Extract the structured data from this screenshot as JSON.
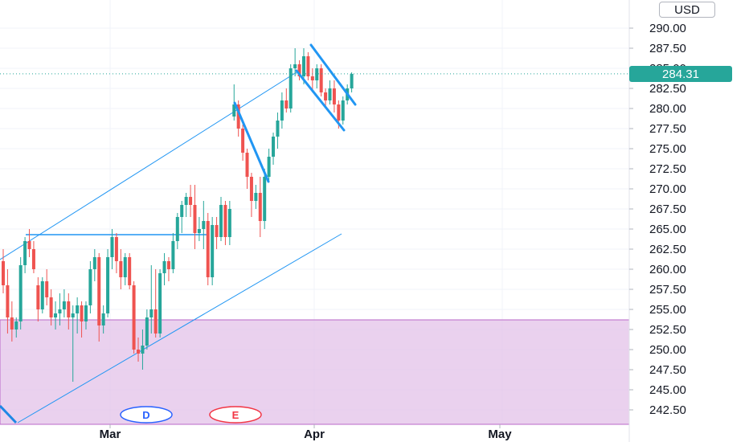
{
  "chart_data": {
    "type": "candlestick",
    "currency": "USD",
    "last_price": "284.31",
    "y_axis": {
      "min": 241,
      "max": 292.5,
      "ticks": [
        "242.50",
        "245.00",
        "247.50",
        "250.00",
        "252.50",
        "255.00",
        "257.50",
        "260.00",
        "262.50",
        "265.00",
        "267.50",
        "270.00",
        "272.50",
        "275.00",
        "277.50",
        "280.00",
        "282.50",
        "285.00",
        "287.50",
        "290.00"
      ]
    },
    "x_axis": {
      "labels": [
        "Mar",
        "Apr",
        "May"
      ]
    },
    "event_badges": [
      {
        "label": "D",
        "color": "#2962ff"
      },
      {
        "label": "E",
        "color": "#f23645"
      }
    ],
    "shaded_zone": {
      "from": 241,
      "to": 253.7,
      "color": "#e1bee7"
    },
    "colors": {
      "up": "#26a69a",
      "down": "#ef5350",
      "drawing": "#2196f3",
      "channel": "#2196f3"
    },
    "candles": [
      [
        261.0,
        262.5,
        257.0,
        258.0
      ],
      [
        258.0,
        260.0,
        252.0,
        254.0
      ],
      [
        254.0,
        256.0,
        251.0,
        252.5
      ],
      [
        252.5,
        254.0,
        251.5,
        253.5
      ],
      [
        253.5,
        261.5,
        252.5,
        260.5
      ],
      [
        260.5,
        264.0,
        259.5,
        263.5
      ],
      [
        263.5,
        265.0,
        261.5,
        262.5
      ],
      [
        262.5,
        263.5,
        259.5,
        260.0
      ],
      [
        258.0,
        259.0,
        253.5,
        255.0
      ],
      [
        255.0,
        259.0,
        254.5,
        258.5
      ],
      [
        258.5,
        260.0,
        255.5,
        256.5
      ],
      [
        256.5,
        257.5,
        253.0,
        254.0
      ],
      [
        254.0,
        256.0,
        252.5,
        254.5
      ],
      [
        254.5,
        257.0,
        253.0,
        255.0
      ],
      [
        255.0,
        257.5,
        254.0,
        256.0
      ],
      [
        256.0,
        257.0,
        252.5,
        254.0
      ],
      [
        254.0,
        255.5,
        246.0,
        254.5
      ],
      [
        254.5,
        256.5,
        252.0,
        255.5
      ],
      [
        255.5,
        256.0,
        251.5,
        253.5
      ],
      [
        253.5,
        256.0,
        252.5,
        255.5
      ],
      [
        255.5,
        261.0,
        254.5,
        260.0
      ],
      [
        260.0,
        262.5,
        258.5,
        261.5
      ],
      [
        261.5,
        262.0,
        251.0,
        253.0
      ],
      [
        253.0,
        255.5,
        252.0,
        254.5
      ],
      [
        254.5,
        262.5,
        254.0,
        261.5
      ],
      [
        261.5,
        265.0,
        260.0,
        264.0
      ],
      [
        264.0,
        264.5,
        259.5,
        261.0
      ],
      [
        261.0,
        262.5,
        257.5,
        259.0
      ],
      [
        259.0,
        262.0,
        258.0,
        261.5
      ],
      [
        261.5,
        262.0,
        257.5,
        258.0
      ],
      [
        258.0,
        258.5,
        249.5,
        250.0
      ],
      [
        250.0,
        251.5,
        248.5,
        249.5
      ],
      [
        249.5,
        252.5,
        247.5,
        250.5
      ],
      [
        250.5,
        255.0,
        250.0,
        254.0
      ],
      [
        254.0,
        260.5,
        252.0,
        255.0
      ],
      [
        255.0,
        260.0,
        251.5,
        252.0
      ],
      [
        252.0,
        260.0,
        251.5,
        259.5
      ],
      [
        259.5,
        262.0,
        258.0,
        261.0
      ],
      [
        261.0,
        261.5,
        258.5,
        260.0
      ],
      [
        260.0,
        264.5,
        259.5,
        263.5
      ],
      [
        263.5,
        267.0,
        262.5,
        266.5
      ],
      [
        266.5,
        268.5,
        264.5,
        268.0
      ],
      [
        268.0,
        269.5,
        266.5,
        269.0
      ],
      [
        269.0,
        270.5,
        266.5,
        268.0
      ],
      [
        268.0,
        270.5,
        262.5,
        264.5
      ],
      [
        264.5,
        266.5,
        263.5,
        265.0
      ],
      [
        265.0,
        268.5,
        262.5,
        266.0
      ],
      [
        266.0,
        267.0,
        258.0,
        259.0
      ],
      [
        259.0,
        266.5,
        258.0,
        265.5
      ],
      [
        265.5,
        266.5,
        262.5,
        264.0
      ],
      [
        264.0,
        269.0,
        263.5,
        268.0
      ],
      [
        268.0,
        268.5,
        263.0,
        264.0
      ],
      [
        264.0,
        268.5,
        263.0,
        267.5
      ],
      [
        279.0,
        283.0,
        278.5,
        280.5
      ],
      [
        280.5,
        281.0,
        276.5,
        277.5
      ],
      [
        277.5,
        278.0,
        273.5,
        274.5
      ],
      [
        274.5,
        275.0,
        270.0,
        271.5
      ],
      [
        271.5,
        272.0,
        266.5,
        268.5
      ],
      [
        268.5,
        270.5,
        267.5,
        269.5
      ],
      [
        269.5,
        271.5,
        264.0,
        266.0
      ],
      [
        266.0,
        272.5,
        265.0,
        271.5
      ],
      [
        271.5,
        275.0,
        271.0,
        274.0
      ],
      [
        274.0,
        277.0,
        273.0,
        276.5
      ],
      [
        276.5,
        279.5,
        275.0,
        278.5
      ],
      [
        278.5,
        282.0,
        277.5,
        281.0
      ],
      [
        281.0,
        282.5,
        279.5,
        280.0
      ],
      [
        280.0,
        285.5,
        279.5,
        285.0
      ],
      [
        285.0,
        287.5,
        284.0,
        285.5
      ],
      [
        285.5,
        286.0,
        283.5,
        284.0
      ],
      [
        284.0,
        287.5,
        283.0,
        286.5
      ],
      [
        286.5,
        287.0,
        283.5,
        284.0
      ],
      [
        284.0,
        285.0,
        282.0,
        283.5
      ],
      [
        283.5,
        285.5,
        282.5,
        285.0
      ],
      [
        285.0,
        285.5,
        281.5,
        282.0
      ],
      [
        282.0,
        282.5,
        280.0,
        281.0
      ],
      [
        281.0,
        283.5,
        280.5,
        282.5
      ],
      [
        282.5,
        283.5,
        279.5,
        280.5
      ],
      [
        280.5,
        281.0,
        277.5,
        278.5
      ],
      [
        278.5,
        281.5,
        278.0,
        281.0
      ],
      [
        281.0,
        283.0,
        280.5,
        282.5
      ],
      [
        282.5,
        284.5,
        282.0,
        284.3
      ]
    ]
  }
}
